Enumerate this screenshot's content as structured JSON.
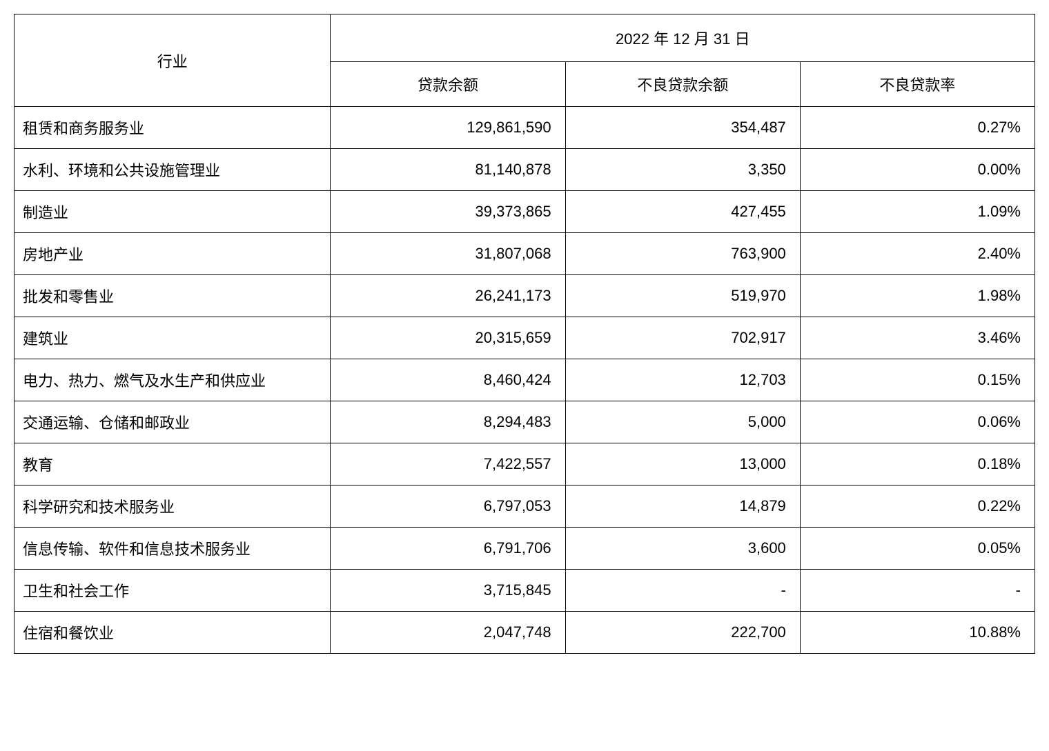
{
  "table": {
    "headers": {
      "industry": "行业",
      "date": "2022 年 12 月 31 日",
      "loan_balance": "贷款余额",
      "npl_balance": "不良贷款余额",
      "npl_ratio": "不良贷款率"
    },
    "rows": [
      {
        "industry": "租赁和商务服务业",
        "loan_balance": "129,861,590",
        "npl_balance": "354,487",
        "npl_ratio": "0.27%"
      },
      {
        "industry": "水利、环境和公共设施管理业",
        "loan_balance": "81,140,878",
        "npl_balance": "3,350",
        "npl_ratio": "0.00%"
      },
      {
        "industry": "制造业",
        "loan_balance": "39,373,865",
        "npl_balance": "427,455",
        "npl_ratio": "1.09%"
      },
      {
        "industry": "房地产业",
        "loan_balance": "31,807,068",
        "npl_balance": "763,900",
        "npl_ratio": "2.40%"
      },
      {
        "industry": "批发和零售业",
        "loan_balance": "26,241,173",
        "npl_balance": "519,970",
        "npl_ratio": "1.98%"
      },
      {
        "industry": "建筑业",
        "loan_balance": "20,315,659",
        "npl_balance": "702,917",
        "npl_ratio": "3.46%"
      },
      {
        "industry": "电力、热力、燃气及水生产和供应业",
        "loan_balance": "8,460,424",
        "npl_balance": "12,703",
        "npl_ratio": "0.15%"
      },
      {
        "industry": "交通运输、仓储和邮政业",
        "loan_balance": "8,294,483",
        "npl_balance": "5,000",
        "npl_ratio": "0.06%"
      },
      {
        "industry": "教育",
        "loan_balance": "7,422,557",
        "npl_balance": "13,000",
        "npl_ratio": "0.18%"
      },
      {
        "industry": "科学研究和技术服务业",
        "loan_balance": "6,797,053",
        "npl_balance": "14,879",
        "npl_ratio": "0.22%"
      },
      {
        "industry": "信息传输、软件和信息技术服务业",
        "loan_balance": "6,791,706",
        "npl_balance": "3,600",
        "npl_ratio": "0.05%"
      },
      {
        "industry": "卫生和社会工作",
        "loan_balance": "3,715,845",
        "npl_balance": "-",
        "npl_ratio": "-"
      },
      {
        "industry": "住宿和餐饮业",
        "loan_balance": "2,047,748",
        "npl_balance": "222,700",
        "npl_ratio": "10.88%"
      }
    ],
    "styling": {
      "border_color": "#000000",
      "background_color": "#ffffff",
      "text_color": "#000000",
      "font_size": 22,
      "header_align": "center",
      "industry_align": "left",
      "number_align": "right",
      "column_widths": {
        "industry": "31%",
        "data_cols": "23%"
      }
    }
  }
}
